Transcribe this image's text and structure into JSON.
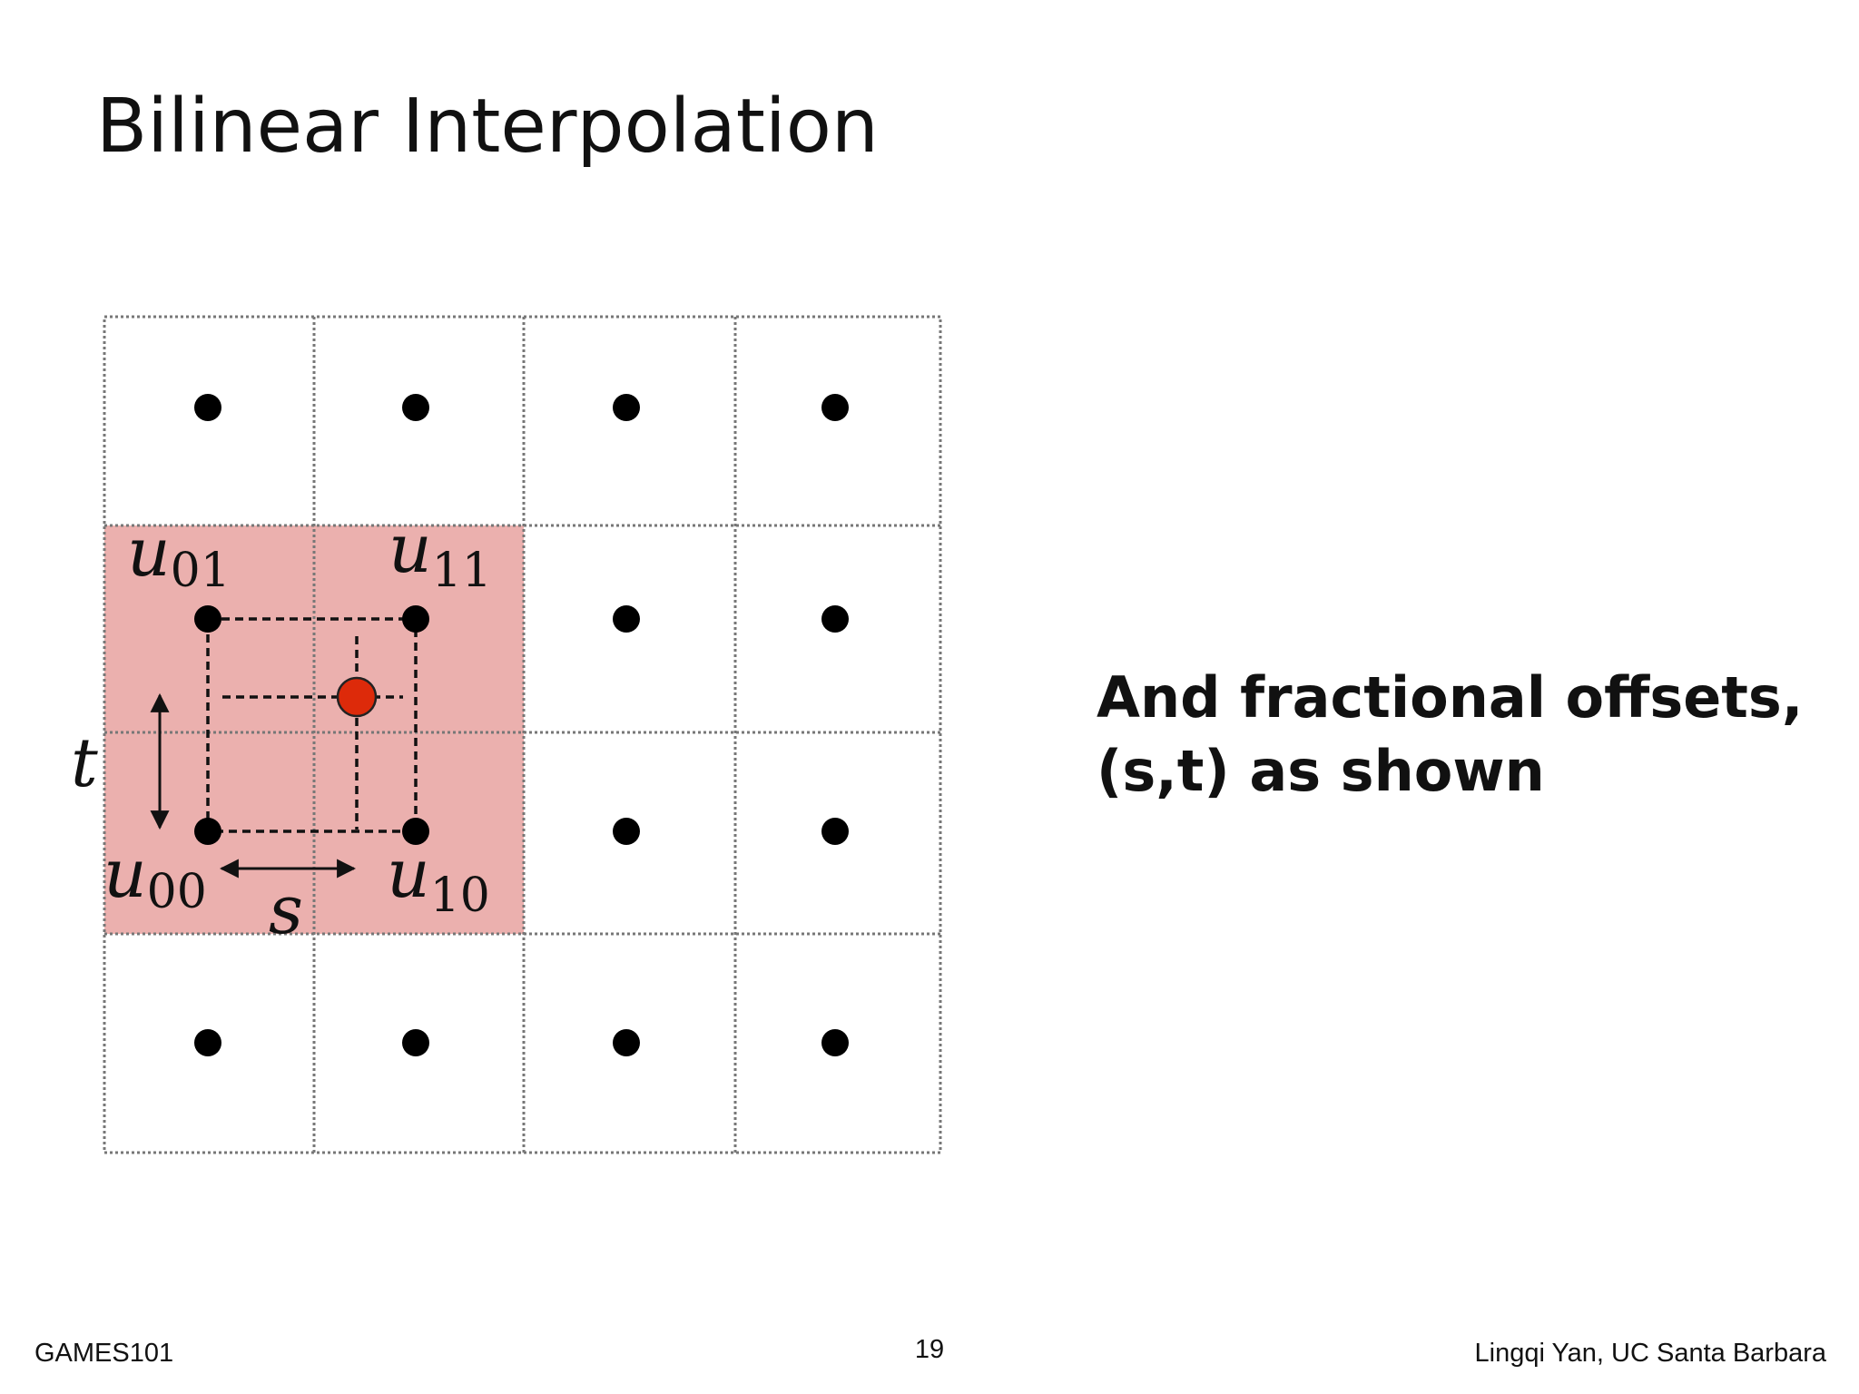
{
  "header": {
    "title": "Bilinear Interpolation"
  },
  "diagram": {
    "labels": {
      "u01": {
        "base": "u",
        "sub": "01"
      },
      "u11": {
        "base": "u",
        "sub": "11"
      },
      "u00": {
        "base": "u",
        "sub": "00"
      },
      "u10": {
        "base": "u",
        "sub": "10"
      },
      "s": "s",
      "t": "t"
    }
  },
  "body": {
    "lines": [
      "And fractional offsets,",
      "(s,t) as shown"
    ]
  },
  "footer": {
    "left": "GAMES101",
    "center": "19",
    "right": "Lingqi Yan, UC Santa Barbara"
  }
}
